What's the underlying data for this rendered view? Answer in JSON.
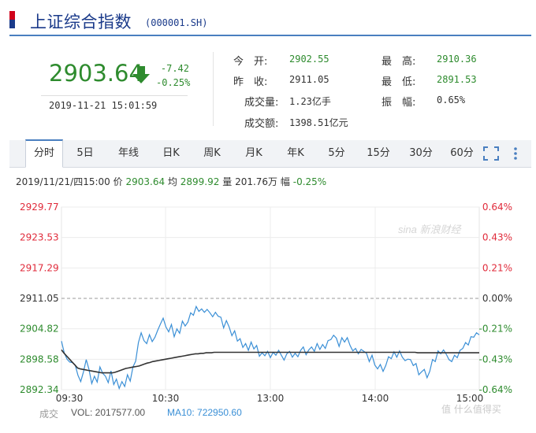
{
  "header": {
    "title": "上证综合指数",
    "code": "(000001.SH)"
  },
  "quote": {
    "price": "2903.64",
    "change": "-7.42",
    "change_pct": "-0.25%",
    "datetime": "2019-11-21 15:01:59",
    "stats": [
      {
        "label": "今　开:",
        "value": "2902.55",
        "color": "#2e8b2e"
      },
      {
        "label": "昨　收:",
        "value": "2911.05",
        "color": "#333333"
      },
      {
        "label": "成交量:",
        "value": "1.23亿手",
        "color": "#333333"
      },
      {
        "label": "成交额:",
        "value": "1398.51亿元",
        "color": "#333333"
      },
      {
        "label": "最　高:",
        "value": "2910.36",
        "color": "#2e8b2e"
      },
      {
        "label": "最　低:",
        "value": "2891.53",
        "color": "#2e8b2e"
      },
      {
        "label": "振　幅:",
        "value": "0.65%",
        "color": "#333333"
      }
    ],
    "down_color": "#2e8b2e",
    "up_color": "#e02b3b"
  },
  "tabs": [
    "分时",
    "5日",
    "年线",
    "日K",
    "周K",
    "月K",
    "年K",
    "5分",
    "15分",
    "30分",
    "60分"
  ],
  "active_tab": "分时",
  "icons": [
    "fullscreen-icon",
    "more-icon"
  ],
  "info_line": {
    "date": "2019/11/21/四15:00",
    "price_label": "价",
    "price": "2903.64",
    "avg_label": "均",
    "avg": "2899.92",
    "vol_label": "量",
    "vol": "201.76万",
    "pct_label": "幅",
    "pct": "-0.25%"
  },
  "watermark": "sina 新浪财经",
  "volume_bar": {
    "label": "成交",
    "vol": "VOL: 2017577.00",
    "ma10": "MA10: 722950.60"
  },
  "corner_watermark": "值 什么值得买",
  "chart_data": {
    "type": "line",
    "x_ticks": [
      "09:30",
      "10:30",
      "13:00",
      "14:00",
      "15:00"
    ],
    "y_ticks": [
      "2929.77",
      "2923.53",
      "2917.29",
      "2911.05",
      "2904.82",
      "2898.58",
      "2892.34"
    ],
    "y_ticks_pct": [
      "0.64%",
      "0.43%",
      "0.21%",
      "0.00%",
      "-0.21%",
      "-0.43%",
      "-0.64%"
    ],
    "ylim": [
      2892.34,
      2929.77
    ],
    "prev_close": 2911.05,
    "series": [
      {
        "color": "#3a8fd6",
        "values": [
          2902.3,
          2899.9,
          2898.6,
          2898.0,
          2897.9,
          2897.4,
          2895.3,
          2894.0,
          2896.0,
          2898.5,
          2896.5,
          2893.6,
          2895.1,
          2893.9,
          2897.0,
          2895.7,
          2895.1,
          2893.8,
          2896.2,
          2893.4,
          2894.5,
          2892.6,
          2894.0,
          2893.0,
          2895.4,
          2894.1,
          2897.0,
          2898.2,
          2902.0,
          2904.0,
          2902.4,
          2901.8,
          2903.6,
          2902.2,
          2903.1,
          2904.5,
          2905.8,
          2907.0,
          2905.2,
          2904.2,
          2905.7,
          2903.2,
          2904.8,
          2903.9,
          2906.4,
          2905.4,
          2906.2,
          2908.1,
          2907.6,
          2909.4,
          2908.4,
          2908.9,
          2908.2,
          2908.8,
          2908.1,
          2907.3,
          2908.2,
          2907.4,
          2907.2,
          2905.0,
          2906.5,
          2905.2,
          2903.4,
          2904.4,
          2902.3,
          2902.8,
          2901.0,
          2901.8,
          2900.4,
          2902.1,
          2900.7,
          2901.4,
          2899.2,
          2899.9,
          2899.3,
          2900.2,
          2898.9,
          2900.0,
          2899.4,
          2900.4,
          2899.4,
          2898.4,
          2899.7,
          2900.2,
          2899.0,
          2899.8,
          2899.1,
          2900.4,
          2901.1,
          2899.5,
          2900.5,
          2901.1,
          2900.2,
          2901.8,
          2900.6,
          2901.6,
          2900.8,
          2902.4,
          2902.6,
          2903.5,
          2902.9,
          2901.2,
          2903.0,
          2902.1,
          2903.0,
          2901.4,
          2900.3,
          2900.8,
          2899.7,
          2900.6,
          2900.2,
          2899.8,
          2898.1,
          2899.4,
          2897.4,
          2896.6,
          2897.5,
          2896.1,
          2897.3,
          2899.1,
          2898.7,
          2900.1,
          2899.0,
          2900.3,
          2899.0,
          2898.3,
          2898.6,
          2898.5,
          2897.3,
          2897.7,
          2895.4,
          2896.0,
          2896.5,
          2894.8,
          2896.1,
          2898.5,
          2898.1,
          2900.3,
          2899.7,
          2900.5,
          2899.6,
          2898.5,
          2898.1,
          2899.4,
          2898.9,
          2900.4,
          2900.8,
          2902.0,
          2901.5,
          2903.2,
          2903.1,
          2904.0,
          2903.6
        ]
      },
      {
        "color": "#333333",
        "values": [
          2900.5,
          2899.8,
          2899.2,
          2898.6,
          2898.0,
          2897.4,
          2896.8,
          2896.6,
          2896.5,
          2896.4,
          2896.3,
          2896.2,
          2896.1,
          2896.0,
          2895.9,
          2895.8,
          2895.8,
          2895.8,
          2895.8,
          2895.8,
          2895.9,
          2896.1,
          2896.3,
          2896.5,
          2896.7,
          2896.8,
          2896.9,
          2897.0,
          2897.1,
          2897.2,
          2897.4,
          2897.6,
          2897.8,
          2897.9,
          2898.1,
          2898.2,
          2898.3,
          2898.4,
          2898.5,
          2898.6,
          2898.7,
          2898.8,
          2898.9,
          2899.0,
          2899.1,
          2899.2,
          2899.3,
          2899.4,
          2899.5,
          2899.6,
          2899.7,
          2899.7,
          2899.8,
          2899.8,
          2899.9,
          2899.9,
          2899.9,
          2900.0,
          2900.0,
          2900.0,
          2900.0,
          2900.0,
          2900.0,
          2900.0,
          2900.0,
          2900.0,
          2900.0,
          2900.0,
          2900.0,
          2900.0,
          2900.0,
          2900.0,
          2900.0,
          2900.0,
          2900.0,
          2900.0,
          2900.0,
          2900.0,
          2900.0,
          2900.0,
          2900.0,
          2900.0,
          2900.0,
          2900.0,
          2900.0,
          2900.0,
          2900.0,
          2900.0,
          2900.0,
          2900.0,
          2900.0,
          2900.0,
          2900.0,
          2900.0,
          2900.0,
          2900.0,
          2900.0,
          2900.0,
          2900.0,
          2900.0,
          2900.0,
          2900.0,
          2900.0,
          2900.0,
          2900.0,
          2900.0,
          2900.0,
          2900.0,
          2900.0,
          2900.0,
          2900.0,
          2900.0,
          2900.0,
          2900.0,
          2900.0,
          2900.0,
          2900.0,
          2900.0,
          2900.0,
          2900.0,
          2900.0,
          2900.0,
          2900.0,
          2900.0,
          2900.0,
          2900.0,
          2900.0,
          2900.0,
          2900.0,
          2900.0,
          2900.0,
          2900.0,
          2900.0,
          2899.9,
          2899.9,
          2899.9,
          2899.9,
          2899.9,
          2899.9,
          2899.9,
          2899.9,
          2899.9,
          2899.9,
          2899.9,
          2899.9,
          2899.9,
          2899.9,
          2899.9,
          2899.9,
          2899.9,
          2899.9,
          2899.9,
          2899.9,
          2899.9,
          2899.9,
          2899.9,
          2899.9
        ]
      }
    ]
  }
}
